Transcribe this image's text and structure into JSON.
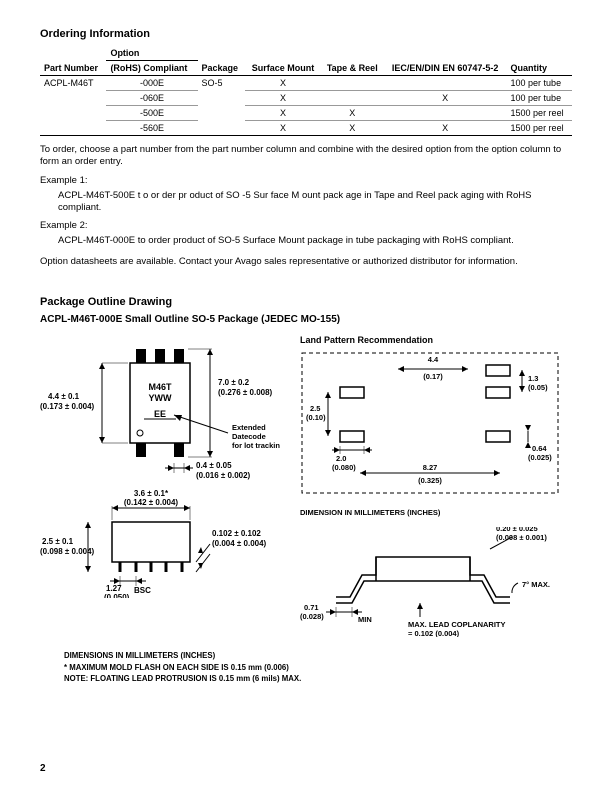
{
  "ordering": {
    "title": "Ordering Information",
    "headers": {
      "part_number": "Part Number",
      "option": "Option",
      "rohs": "(RoHS) Compliant",
      "package": "Package",
      "surface_mount": "Surface Mount",
      "tape_reel": "Tape & Reel",
      "iec": "IEC/EN/DIN EN 60747-5-2",
      "quantity": "Quantity"
    },
    "part": "ACPL-M46T",
    "pkg": "SO-5",
    "rows": [
      {
        "opt": "-000E",
        "sm": "X",
        "tr": "",
        "iec": "",
        "qty": "100 per tube"
      },
      {
        "opt": "-060E",
        "sm": "X",
        "tr": "",
        "iec": "X",
        "qty": "100 per tube"
      },
      {
        "opt": "-500E",
        "sm": "X",
        "tr": "X",
        "iec": "",
        "qty": "1500 per reel"
      },
      {
        "opt": "-560E",
        "sm": "X",
        "tr": "X",
        "iec": "X",
        "qty": "1500 per reel"
      }
    ],
    "note": "To order, choose a part number from the part number column and combine with the desired option from the option column to form an order entry.",
    "ex1_label": "Example 1:",
    "ex1_text": "ACPL-M46T-500E t o or der pr oduct of SO  -5 Sur face M ount pack age in   Tape and Reel pack   aging with RoHS compliant.",
    "ex2_label": "Example 2:",
    "ex2_text": "ACPL-M46T-000E to order product of SO-5 Surface Mount package in tube packaging with RoHS compliant.",
    "datasheet_note": "Option datasheets are available. Contact your Avago sales representative or authorized distributor for information."
  },
  "package": {
    "title": "Package Outline Drawing",
    "subtitle": "ACPL-M46T-000E Small Outline SO-5 Package (JEDEC MO-155)",
    "land_title": "Land Pattern Recommendation",
    "top_view": {
      "marking1": "M46T",
      "marking2": "YWW",
      "marking3": "EE",
      "dim_left": "4.4 ± 0.1",
      "dim_left_in": "(0.173 ± 0.004)",
      "dim_right": "7.0 ± 0.2",
      "dim_right_in": "(0.276 ± 0.008)",
      "dim_bot": "0.4 ± 0.05",
      "dim_bot_in": "(0.016 ± 0.002)",
      "datecode": "Extended Datecode for lot tracking"
    },
    "side_view": {
      "dim_top": "3.6 ± 0.1*",
      "dim_top_in": "(0.142 ± 0.004)",
      "dim_right": "0.102 ± 0.102",
      "dim_right_in": "(0.004 ± 0.004)",
      "dim_left": "2.5 ± 0.1",
      "dim_left_in": "(0.098 ± 0.004)",
      "dim_bot": "1.27",
      "dim_bot_in": "(0.050)",
      "bsc": "BSC"
    },
    "land": {
      "dim_top": "4.4",
      "dim_top_in": "(0.17)",
      "dim_l1": "2.5",
      "dim_l1_in": "(0.10)",
      "dim_l2": "2.0",
      "dim_l2_in": "(0.080)",
      "dim_r1": "1.3",
      "dim_r1_in": "(0.05)",
      "dim_r2": "0.64",
      "dim_r2_in": "(0.025)",
      "dim_bot": "8.27",
      "dim_bot_in": "(0.325)",
      "note": "DIMENSION IN MILLIMETERS (INCHES)"
    },
    "profile": {
      "dim_top": "0.20 ± 0.025",
      "dim_top_in": "(0.008 ± 0.001)",
      "angle": "7° MAX.",
      "dim_left": "0.71",
      "dim_left_in": "(0.028)",
      "min": "MIN",
      "coplanar1": "MAX. LEAD COPLANARITY",
      "coplanar2": "= 0.102 (0.004)"
    },
    "footnotes": {
      "l1": "DIMENSIONS IN MILLIMETERS (INCHES)",
      "l2": "* MAXIMUM MOLD FLASH ON EACH SIDE IS 0.15 mm (0.006)",
      "l3": "NOTE: FLOATING LEAD PROTRUSION IS 0.15 mm (6 mils) MAX."
    }
  },
  "page_number": "2"
}
